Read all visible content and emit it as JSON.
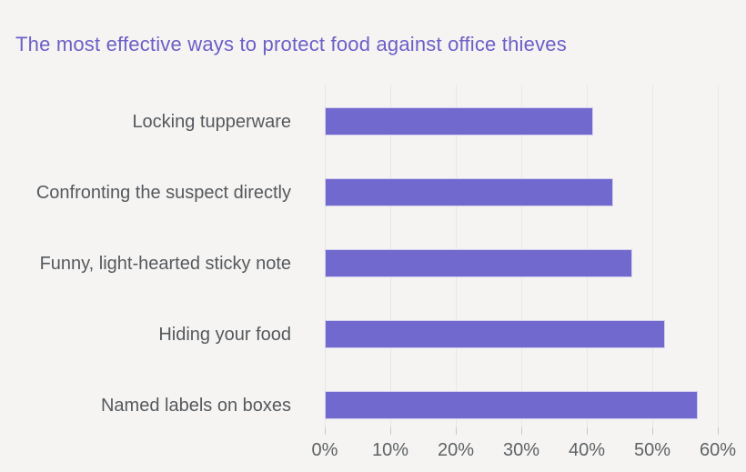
{
  "title": "The most effective ways to protect food against office thieves",
  "colors": {
    "background": "#f5f4f2",
    "title": "#6c5fc7",
    "bar": "#7169ce",
    "category_label": "#55595d",
    "tick_label": "#5e6265",
    "gridline": "#e8e7e4",
    "tick_mark": "#c9c8c6"
  },
  "chart_data": {
    "type": "bar",
    "orientation": "horizontal",
    "title": "The most effective ways to protect food against office thieves",
    "categories": [
      "Locking tupperware",
      "Confronting the suspect directly",
      "Funny, light-hearted sticky note",
      "Hiding your food",
      "Named labels on boxes"
    ],
    "values": [
      41,
      44,
      47,
      52,
      57
    ],
    "value_unit": "%",
    "xlabel": "",
    "ylabel": "",
    "xlim": [
      0,
      60
    ],
    "x_tick_values": [
      0,
      10,
      20,
      30,
      40,
      50,
      60
    ],
    "x_tick_labels": [
      "0%",
      "10%",
      "20%",
      "30%",
      "40%",
      "50%",
      "60%"
    ],
    "grid": "vertical-gridlines-on",
    "legend": "none",
    "data_labels": "none"
  }
}
